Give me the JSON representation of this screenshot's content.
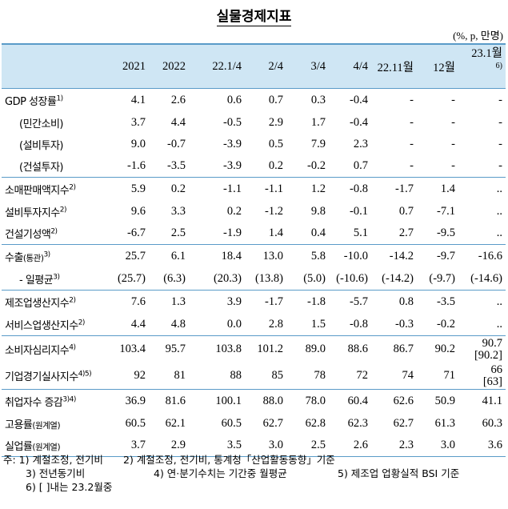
{
  "title": "실물경제지표",
  "unit": "(%, p, 만명)",
  "table": {
    "header": [
      "2021",
      "2022",
      "22.1/4",
      "2/4",
      "3/4",
      "4/4",
      "22.11월",
      "12월",
      {
        "label": "23.1월",
        "note": "6)"
      }
    ],
    "groups": [
      [
        {
          "label": "GDP 성장률",
          "note": "1)",
          "cells": [
            "4.1",
            "2.6",
            "0.6",
            "0.7",
            "0.3",
            "-0.4",
            "-",
            "-",
            "-"
          ]
        },
        {
          "label": "(민간소비)",
          "cells": [
            "3.7",
            "4.4",
            "-0.5",
            "2.9",
            "1.7",
            "-0.4",
            "-",
            "-",
            "-"
          ]
        },
        {
          "label": "(설비투자)",
          "cells": [
            "9.0",
            "-0.7",
            "-3.9",
            "0.5",
            "7.9",
            "2.3",
            "-",
            "-",
            "-"
          ]
        },
        {
          "label": "(건설투자)",
          "cells": [
            "-1.6",
            "-3.5",
            "-3.9",
            "0.2",
            "-0.2",
            "0.7",
            "-",
            "-",
            "-"
          ]
        }
      ],
      [
        {
          "label": "소매판매액지수",
          "note": "2)",
          "cells": [
            "5.9",
            "0.2",
            "-1.1",
            "-1.1",
            "1.2",
            "-0.8",
            "-1.7",
            "1.4",
            ".."
          ]
        },
        {
          "label": "설비투자지수",
          "note": "2)",
          "cells": [
            "9.6",
            "3.3",
            "0.2",
            "-1.2",
            "9.8",
            "-0.1",
            "0.7",
            "-7.1",
            ".."
          ]
        },
        {
          "label": "건설기성액",
          "note": "2)",
          "cells": [
            "-6.7",
            "2.5",
            "-1.9",
            "1.4",
            "0.4",
            "5.1",
            "2.7",
            "-9.5",
            ".."
          ]
        }
      ],
      [
        {
          "label": "수출",
          "qualifier": "(통관)",
          "note": "3)",
          "cells": [
            "25.7",
            "6.1",
            "18.4",
            "13.0",
            "5.8",
            "-10.0",
            "-14.2",
            "-9.7",
            "-16.6"
          ]
        },
        {
          "label": "- 일평균",
          "note": "3)",
          "cells": [
            "(25.7)",
            "(6.3)",
            "(20.3)",
            "(13.8)",
            "(5.0)",
            "(-10.6)",
            "(-14.2)",
            "(-9.7)",
            "(-14.6)"
          ]
        }
      ],
      [
        {
          "label": "제조업생산지수",
          "note": "2)",
          "cells": [
            "7.6",
            "1.3",
            "3.9",
            "-1.7",
            "-1.8",
            "-5.7",
            "0.8",
            "-3.5",
            ".."
          ]
        },
        {
          "label": "서비스업생산지수",
          "note": "2)",
          "cells": [
            "4.4",
            "4.8",
            "0.0",
            "2.8",
            "1.5",
            "-0.8",
            "-0.3",
            "-0.2",
            ".."
          ]
        }
      ],
      [
        {
          "label": "소비자심리지수",
          "note": "4)",
          "cells": [
            "103.4",
            "95.7",
            "103.8",
            "101.2",
            "89.0",
            "88.6",
            "86.7",
            "90.2",
            "90.7"
          ],
          "bracket": "[90.2]"
        },
        {
          "label": "기업경기실사지수",
          "note": "4)5)",
          "cells": [
            "92",
            "81",
            "88",
            "85",
            "78",
            "72",
            "74",
            "71",
            "66"
          ],
          "bracket": "[63]"
        }
      ],
      [
        {
          "label": "취업자수 증감",
          "note": "3)4)",
          "cells": [
            "36.9",
            "81.6",
            "100.1",
            "88.0",
            "78.0",
            "60.4",
            "62.6",
            "50.9",
            "41.1"
          ]
        },
        {
          "label": "고용률",
          "qualifier": "(원계열)",
          "cells": [
            "60.5",
            "62.1",
            "60.5",
            "62.7",
            "62.8",
            "62.3",
            "62.7",
            "61.3",
            "60.3"
          ]
        },
        {
          "label": "실업률",
          "qualifier": "(원계열)",
          "cells": [
            "3.7",
            "2.9",
            "3.5",
            "3.0",
            "2.5",
            "2.6",
            "2.3",
            "3.0",
            "3.6"
          ]
        }
      ]
    ]
  },
  "footnotes": [
    "주: 1) 계절조정, 전기비",
    "2) 계절조정, 전기비, 통계청「산업활동동향」기준",
    "3) 전년동기비",
    "4) 연·분기수치는 기간중 월평균",
    "5) 제조업 업황실적 BSI 기준",
    "6) [ ]내는 23.2월중"
  ]
}
